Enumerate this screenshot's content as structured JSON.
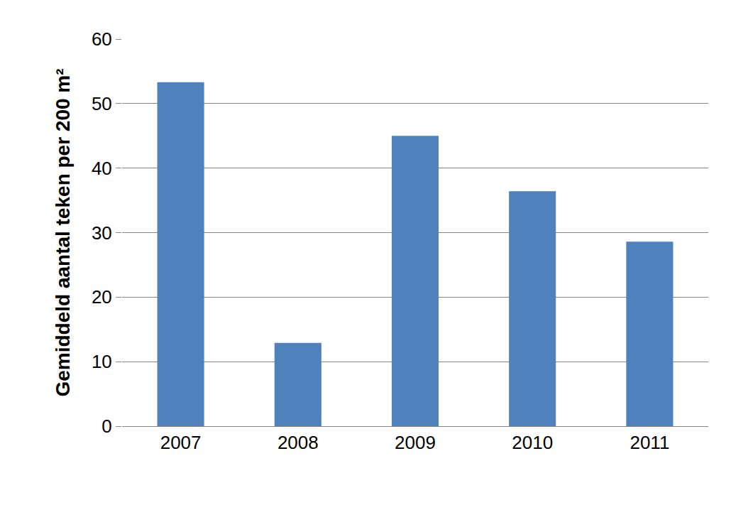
{
  "chart_data": {
    "type": "bar",
    "y_label": "Gemiddeld aantal teken per 200 m²",
    "categories": [
      "2007",
      "2008",
      "2009",
      "2010",
      "2011"
    ],
    "values": [
      53.3,
      12.9,
      45.0,
      36.4,
      28.6
    ],
    "color": "#4f81bd",
    "ylim": [
      0,
      60
    ],
    "yticks": [
      0,
      10,
      20,
      30,
      40,
      50,
      60
    ],
    "grid": true
  }
}
